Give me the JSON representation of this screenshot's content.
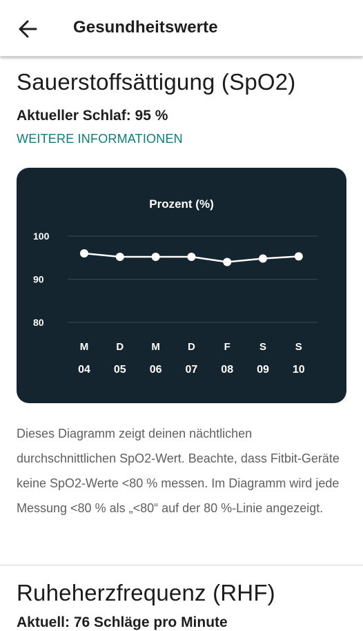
{
  "appbar": {
    "title": "Gesundheitswerte",
    "back_icon": "arrow-left-icon"
  },
  "spo2": {
    "title": "Sauerstoffsättigung (SpO2)",
    "current_label": "Aktueller Schlaf: 95 %",
    "more_link": "WEITERE INFORMATIONEN",
    "description": "Dieses Diagramm zeigt deinen nächtlichen durchschnittlichen SpO2-Wert. Beachte, dass Fitbit-Geräte keine SpO2-Werte <80 % messen. Im Diagramm wird jede Messung <80 % als „<80“ auf der 80 %-Linie angezeigt."
  },
  "next_section": {
    "title": "Ruheherzfrequenz (RHF)",
    "subtitle": "Aktuell: 76 Schläge pro Minute"
  },
  "colors": {
    "card_bg": "#15252f",
    "accent_link": "#0a7e7b",
    "line": "#ffffff"
  },
  "chart_data": {
    "type": "line",
    "title": "Prozent (%)",
    "x_weekday": [
      "M",
      "D",
      "M",
      "D",
      "F",
      "S",
      "S"
    ],
    "x_day": [
      "04",
      "05",
      "06",
      "07",
      "08",
      "09",
      "10"
    ],
    "series": [
      {
        "values": [
          96,
          95.2,
          95.2,
          95.2,
          94,
          94.8,
          95.3
        ]
      }
    ],
    "y_ticks": [
      100,
      90,
      80
    ],
    "ylim": [
      80,
      100
    ],
    "grid": true
  }
}
